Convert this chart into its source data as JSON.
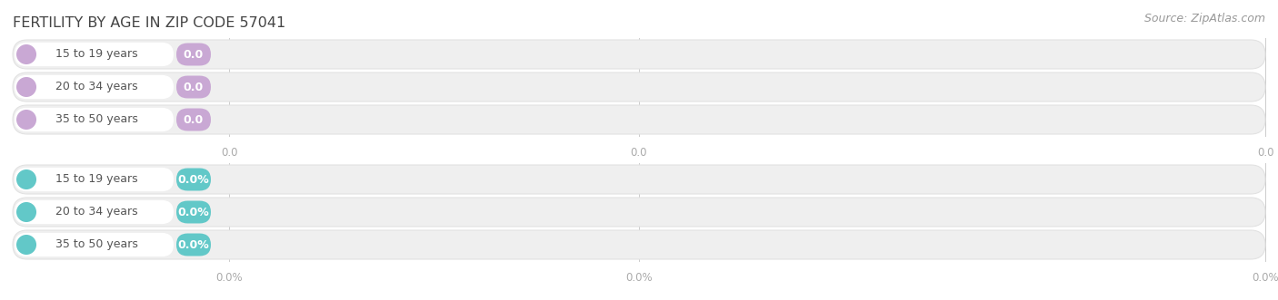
{
  "title": "FERTILITY BY AGE IN ZIP CODE 57041",
  "source": "Source: ZipAtlas.com",
  "categories": [
    "15 to 19 years",
    "20 to 34 years",
    "35 to 50 years"
  ],
  "top_value_labels": [
    "0.0",
    "0.0",
    "0.0"
  ],
  "bottom_value_labels": [
    "0.0%",
    "0.0%",
    "0.0%"
  ],
  "top_tick_labels": [
    "0.0",
    "0.0",
    "0.0"
  ],
  "bottom_tick_labels": [
    "0.0%",
    "0.0%",
    "0.0%"
  ],
  "top_accent_color": "#c9a8d4",
  "top_value_color": "#c9a8d4",
  "bottom_accent_color": "#62c8c8",
  "bottom_value_color": "#62c8c8",
  "bar_bg_color": "#efefef",
  "bar_bg_border": "#e2e2e2",
  "label_bg_color": "#ffffff",
  "bg_color": "#ffffff",
  "title_color": "#444444",
  "label_text_color": "#555555",
  "tick_color": "#aaaaaa",
  "source_color": "#999999",
  "title_fontsize": 11.5,
  "label_fontsize": 9,
  "tick_fontsize": 8.5,
  "source_fontsize": 9
}
